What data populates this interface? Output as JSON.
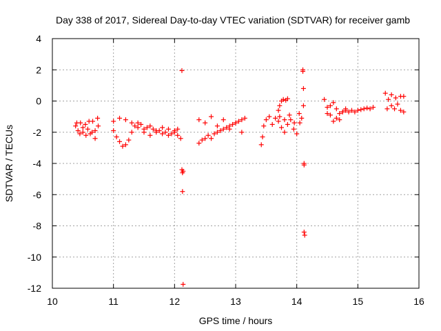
{
  "chart_data": {
    "type": "scatter",
    "title": "Day 338 of 2017, Sidereal Day-to-day VTEC variation (SDTVAR) for receiver gamb",
    "xlabel": "GPS time / hours",
    "ylabel": "SDTVAR / TECUs",
    "xlim": [
      10,
      16
    ],
    "ylim": [
      -12,
      4
    ],
    "x_ticks": [
      "10",
      "11",
      "12",
      "13",
      "14",
      "15",
      "16"
    ],
    "y_ticks": [
      "4",
      "2",
      "0",
      "-2",
      "-4",
      "-6",
      "-8",
      "-10",
      "-12"
    ],
    "grid": true,
    "marker": "plus",
    "color": "#ff0000",
    "segments": [
      {
        "x": [
          10.38,
          10.42,
          10.46,
          10.5,
          10.54,
          10.58,
          10.62,
          10.66,
          10.7,
          10.74
        ],
        "y": [
          -1.6,
          -1.9,
          -1.4,
          -2.0,
          -1.5,
          -1.8,
          -2.1,
          -1.3,
          -1.9,
          -1.1
        ]
      },
      {
        "x": [
          10.4,
          10.45,
          10.5,
          10.55,
          10.6,
          10.65,
          10.7,
          10.75
        ],
        "y": [
          -1.4,
          -2.1,
          -1.7,
          -2.2,
          -1.3,
          -2.0,
          -2.4,
          -1.6
        ]
      },
      {
        "x": [
          11.0,
          11.05,
          11.1,
          11.15,
          11.2,
          11.25,
          11.3,
          11.35,
          11.4,
          11.45,
          11.5,
          11.55,
          11.6,
          11.65,
          11.7,
          11.75,
          11.8,
          11.85,
          11.9,
          11.95,
          12.0,
          12.05,
          12.1
        ],
        "y": [
          -1.9,
          -2.3,
          -2.6,
          -2.9,
          -2.8,
          -2.5,
          -2.0,
          -1.6,
          -1.4,
          -1.5,
          -1.8,
          -1.7,
          -1.6,
          -1.8,
          -2.0,
          -1.9,
          -2.1,
          -2.0,
          -2.2,
          -2.1,
          -2.0,
          -2.2,
          -2.4
        ]
      },
      {
        "x": [
          11.0,
          11.1,
          11.2,
          11.3,
          11.4,
          11.5,
          11.6,
          11.7,
          11.8,
          11.9,
          12.0,
          12.05
        ],
        "y": [
          -1.3,
          -1.1,
          -1.2,
          -1.4,
          -1.7,
          -2.0,
          -2.2,
          -1.9,
          -1.7,
          -1.8,
          -1.9,
          -1.8
        ]
      },
      {
        "x": [
          12.12,
          12.12,
          12.13,
          12.13,
          12.14,
          12.14
        ],
        "y": [
          1.95,
          -4.4,
          -4.6,
          -5.8,
          -11.75,
          -4.5
        ]
      },
      {
        "x": [
          12.4,
          12.45,
          12.5,
          12.55,
          12.6,
          12.65,
          12.7,
          12.75,
          12.8,
          12.85,
          12.9,
          12.95,
          13.0,
          13.05,
          13.1,
          13.15
        ],
        "y": [
          -2.7,
          -2.5,
          -2.4,
          -2.2,
          -2.4,
          -2.1,
          -2.0,
          -1.9,
          -1.8,
          -1.7,
          -1.6,
          -1.5,
          -1.4,
          -1.3,
          -1.2,
          -1.1
        ]
      },
      {
        "x": [
          12.4,
          12.5,
          12.6,
          12.7,
          12.8,
          12.9,
          13.0,
          13.1
        ],
        "y": [
          -1.2,
          -1.4,
          -1.0,
          -1.6,
          -1.2,
          -1.8,
          -1.4,
          -2.0
        ]
      },
      {
        "x": [
          13.42,
          13.44,
          13.46,
          13.5,
          13.55,
          13.6,
          13.65,
          13.7,
          13.75,
          13.8,
          13.85,
          13.9,
          13.95,
          14.0,
          14.05
        ],
        "y": [
          -2.8,
          -2.3,
          -1.6,
          -1.2,
          -1.0,
          -1.5,
          -1.1,
          -1.3,
          -1.7,
          -2.0,
          -1.5,
          -1.2,
          -1.8,
          -2.1,
          -1.4
        ]
      },
      {
        "x": [
          13.7,
          13.72,
          13.75,
          13.78,
          13.82,
          13.85
        ],
        "y": [
          -0.6,
          -0.3,
          0.0,
          0.1,
          0.05,
          0.15
        ]
      },
      {
        "x": [
          13.72,
          13.8,
          13.88,
          13.96,
          14.04,
          14.08
        ],
        "y": [
          -1.0,
          -1.2,
          -0.9,
          -1.4,
          -0.8,
          -1.1
        ]
      },
      {
        "x": [
          14.1,
          14.1,
          14.11,
          14.11,
          14.12,
          14.12,
          14.12,
          14.13
        ],
        "y": [
          2.0,
          1.9,
          0.8,
          -0.3,
          -4.0,
          -4.1,
          -8.4,
          -8.6
        ]
      },
      {
        "x": [
          14.45,
          14.5,
          14.55,
          14.6,
          14.65,
          14.7,
          14.75,
          14.8,
          14.85,
          14.9,
          14.95,
          15.0,
          15.05,
          15.1,
          15.15,
          15.2,
          15.25
        ],
        "y": [
          0.1,
          -0.4,
          -0.9,
          -1.3,
          -1.1,
          -0.8,
          -0.7,
          -0.6,
          -0.7,
          -0.6,
          -0.7,
          -0.6,
          -0.55,
          -0.5,
          -0.45,
          -0.5,
          -0.4
        ]
      },
      {
        "x": [
          14.5,
          14.55,
          14.6,
          14.65,
          14.7,
          14.75,
          14.8
        ],
        "y": [
          -0.8,
          -0.3,
          -0.1,
          -0.5,
          -1.2,
          -0.7,
          -0.5
        ]
      },
      {
        "x": [
          15.45,
          15.5,
          15.55,
          15.6,
          15.65,
          15.7,
          15.75
        ],
        "y": [
          0.5,
          0.1,
          -0.3,
          -0.5,
          -0.2,
          -0.6,
          0.3
        ]
      },
      {
        "x": [
          15.48,
          15.55,
          15.62,
          15.7,
          15.75
        ],
        "y": [
          -0.5,
          0.4,
          0.2,
          0.3,
          -0.7
        ]
      }
    ]
  }
}
